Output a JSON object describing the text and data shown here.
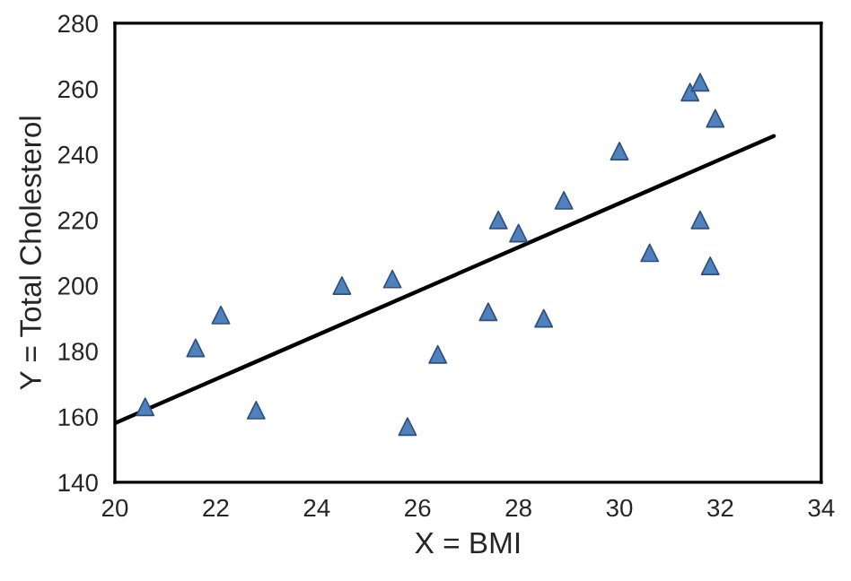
{
  "chart_data": {
    "type": "scatter",
    "xlabel": "X = BMI",
    "ylabel": "Y = Total Cholesterol",
    "xlim": [
      20,
      34
    ],
    "xticks": [
      20,
      22,
      24,
      26,
      28,
      30,
      32,
      34
    ],
    "ylim": [
      140,
      280
    ],
    "yticks": [
      140,
      160,
      180,
      200,
      220,
      240,
      260,
      280
    ],
    "grid": false,
    "legend": false,
    "series": [
      {
        "marker": "triangle",
        "color": "#4f81bd",
        "x": [
          20.6,
          21.6,
          22.1,
          22.8,
          24.5,
          25.5,
          25.8,
          26.4,
          27.4,
          27.6,
          28.0,
          28.5,
          28.9,
          30.0,
          30.6,
          31.4,
          31.6,
          31.9,
          31.6,
          31.8
        ],
        "values": [
          163,
          181,
          191,
          162,
          200,
          202,
          157,
          179,
          192,
          220,
          216,
          190,
          226,
          241,
          210,
          259,
          262,
          251,
          220,
          206
        ]
      },
      {
        "type": "line",
        "marker": "none",
        "color": "#000000",
        "x": [
          20,
          33.06
        ],
        "values": [
          158,
          245.6
        ]
      }
    ]
  }
}
